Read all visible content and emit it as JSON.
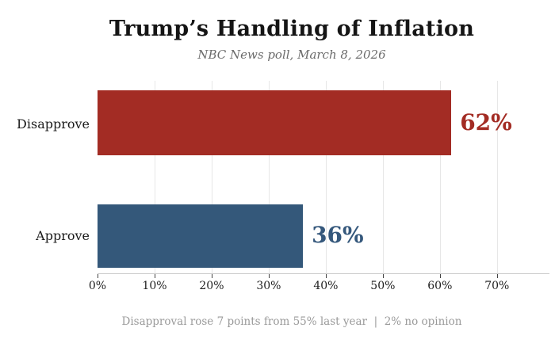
{
  "chart_data": {
    "type": "bar",
    "orientation": "horizontal",
    "title": "Trump’s Handling of Inflation",
    "subtitle": "NBC News poll, March 8, 2026",
    "categories": [
      "Disapprove",
      "Approve"
    ],
    "values": [
      62,
      36
    ],
    "value_labels": [
      "62%",
      "36%"
    ],
    "bar_colors": [
      "#a32c24",
      "#34587a"
    ],
    "value_label_colors": [
      "#a32c24",
      "#35587c"
    ],
    "xlabel": "",
    "ylabel": "",
    "xlim": [
      0,
      79.2
    ],
    "xticks": [
      0,
      10,
      20,
      30,
      40,
      50,
      60,
      70
    ],
    "xtick_labels": [
      "0%",
      "10%",
      "20%",
      "30%",
      "40%",
      "50%",
      "60%",
      "70%"
    ],
    "grid": true,
    "legend": false,
    "annotation": "Disapproval rose 7 points from 55% last year  |  2% no opinion"
  }
}
